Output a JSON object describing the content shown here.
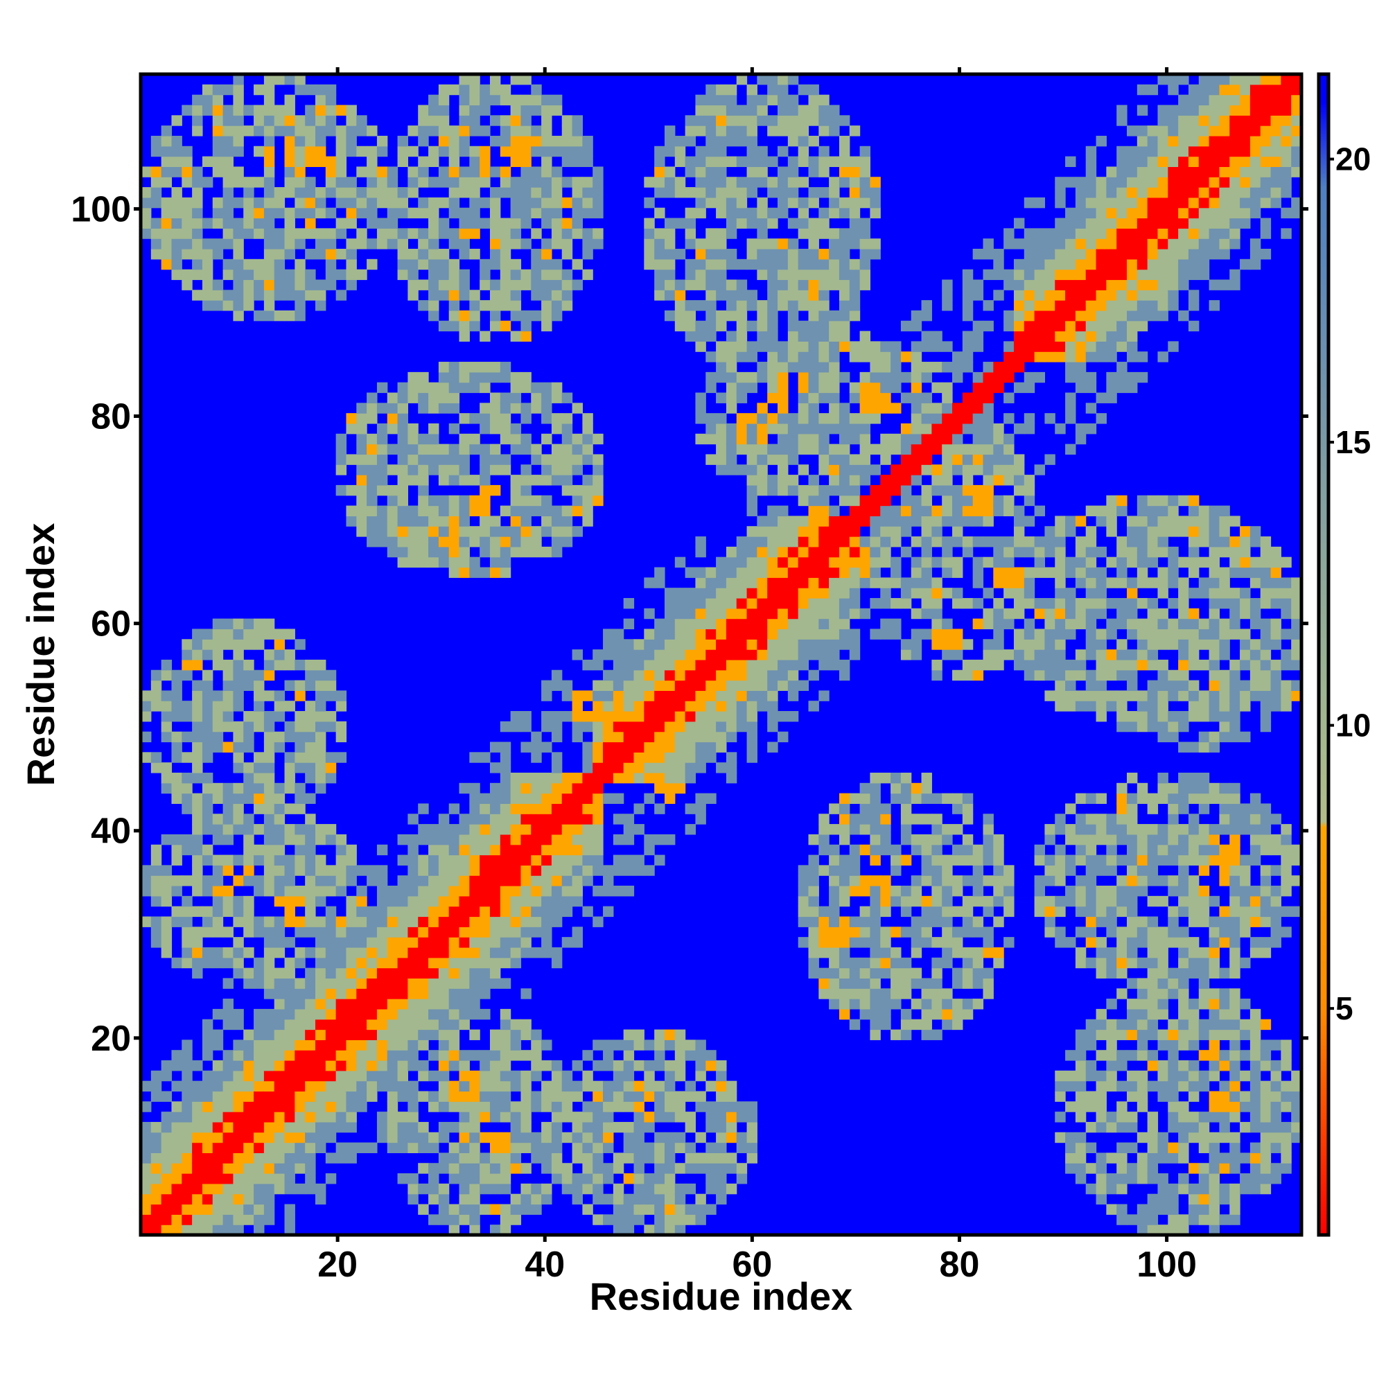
{
  "chart_data": {
    "type": "heatmap",
    "title": "",
    "xlabel": "Residue index",
    "ylabel": "Residue index",
    "xlim": [
      1,
      113
    ],
    "ylim": [
      1,
      113
    ],
    "n_residues": 113,
    "x_ticks": [
      20,
      40,
      60,
      80,
      100
    ],
    "y_ticks": [
      20,
      40,
      60,
      80,
      100
    ],
    "colorbar": {
      "ticks": [
        5,
        10,
        15,
        20
      ],
      "range": [
        1,
        21.5
      ],
      "stops": [
        {
          "value": 1,
          "color": "#ff0000"
        },
        {
          "value": 5,
          "color": "#ff8c00"
        },
        {
          "value": 8.2,
          "color": "#ffa500"
        },
        {
          "value": 8.3,
          "color": "#b3bd8a"
        },
        {
          "value": 10,
          "color": "#a3b88f"
        },
        {
          "value": 15,
          "color": "#7b9aa6"
        },
        {
          "value": 19.5,
          "color": "#4f7fc4"
        },
        {
          "value": 21,
          "color": "#0000ff"
        }
      ]
    },
    "colors": {
      "no_contact": "#0000ff",
      "diagonal": "#ff0000",
      "close": "#ffa500",
      "medium": "#a3b88f",
      "far": "#6f92b0"
    },
    "contact_regions": [
      {
        "x": [
          1,
          45
        ],
        "y": [
          1,
          45
        ],
        "kind": "diagonal-band"
      },
      {
        "x": [
          45,
          70
        ],
        "y": [
          45,
          70
        ],
        "kind": "diagonal-band"
      },
      {
        "x": [
          86,
          113
        ],
        "y": [
          86,
          113
        ],
        "kind": "diagonal-band"
      },
      {
        "x": [
          1,
          25
        ],
        "y": [
          90,
          113
        ],
        "kind": "cluster"
      },
      {
        "x": [
          90,
          113
        ],
        "y": [
          1,
          25
        ],
        "kind": "cluster"
      },
      {
        "x": [
          25,
          45
        ],
        "y": [
          88,
          113
        ],
        "kind": "cluster"
      },
      {
        "x": [
          88,
          113
        ],
        "y": [
          25,
          45
        ],
        "kind": "cluster"
      },
      {
        "x": [
          50,
          72
        ],
        "y": [
          85,
          113
        ],
        "kind": "cluster"
      },
      {
        "x": [
          85,
          113
        ],
        "y": [
          50,
          72
        ],
        "kind": "cluster"
      },
      {
        "x": [
          20,
          45
        ],
        "y": [
          65,
          85
        ],
        "kind": "cluster"
      },
      {
        "x": [
          65,
          85
        ],
        "y": [
          20,
          45
        ],
        "kind": "cluster"
      },
      {
        "x": [
          55,
          80
        ],
        "y": [
          72,
          88
        ],
        "kind": "cluster"
      },
      {
        "x": [
          72,
          88
        ],
        "y": [
          55,
          80
        ],
        "kind": "cluster"
      },
      {
        "x": [
          1,
          20
        ],
        "y": [
          40,
          60
        ],
        "kind": "cluster"
      },
      {
        "x": [
          40,
          60
        ],
        "y": [
          1,
          20
        ],
        "kind": "cluster"
      },
      {
        "x": [
          95,
          113
        ],
        "y": [
          48,
          62
        ],
        "kind": "cluster"
      },
      {
        "x": [
          1,
          22
        ],
        "y": [
          25,
          42
        ],
        "kind": "cluster"
      },
      {
        "x": [
          25,
          42
        ],
        "y": [
          1,
          22
        ],
        "kind": "cluster"
      }
    ],
    "highlight_contacts": [
      {
        "x": 62,
        "y": 81
      },
      {
        "x": 64,
        "y": 83
      },
      {
        "x": 60,
        "y": 79
      },
      {
        "x": 72,
        "y": 82
      },
      {
        "x": 74,
        "y": 80
      },
      {
        "x": 82,
        "y": 72
      },
      {
        "x": 85,
        "y": 65
      },
      {
        "x": 81,
        "y": 60
      },
      {
        "x": 79,
        "y": 58
      },
      {
        "x": 44,
        "y": 52
      },
      {
        "x": 52,
        "y": 44
      },
      {
        "x": 46,
        "y": 50
      },
      {
        "x": 50,
        "y": 46
      },
      {
        "x": 66,
        "y": 70
      },
      {
        "x": 70,
        "y": 66
      },
      {
        "x": 10,
        "y": 35
      },
      {
        "x": 15,
        "y": 32
      },
      {
        "x": 35,
        "y": 10
      },
      {
        "x": 32,
        "y": 15
      },
      {
        "x": 14,
        "y": 106
      },
      {
        "x": 18,
        "y": 105
      },
      {
        "x": 106,
        "y": 14
      },
      {
        "x": 105,
        "y": 18
      },
      {
        "x": 35,
        "y": 105
      },
      {
        "x": 38,
        "y": 106
      },
      {
        "x": 105,
        "y": 35
      },
      {
        "x": 106,
        "y": 38
      },
      {
        "x": 30,
        "y": 68
      },
      {
        "x": 34,
        "y": 72
      },
      {
        "x": 68,
        "y": 30
      },
      {
        "x": 72,
        "y": 34
      }
    ]
  }
}
